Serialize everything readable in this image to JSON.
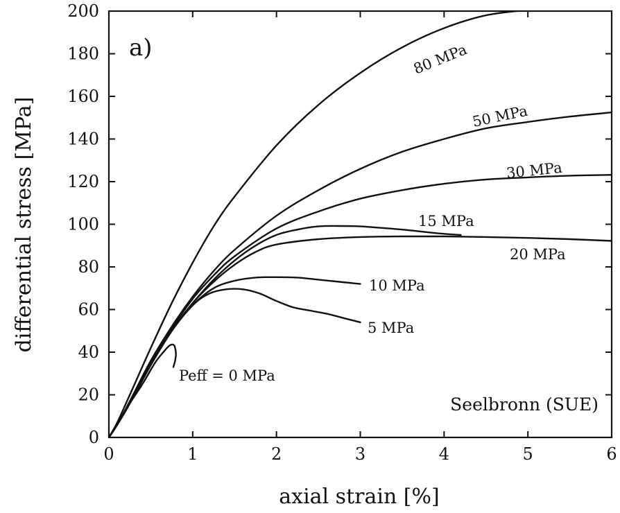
{
  "chart_data": {
    "type": "line",
    "panel_label": "a)",
    "annotation": "Seelbronn (SUE)",
    "xlabel": "axial strain [%]",
    "ylabel": "differential stress [MPa]",
    "xlim": [
      0,
      6
    ],
    "ylim": [
      0,
      200
    ],
    "xticks": [
      0,
      1,
      2,
      3,
      4,
      5,
      6
    ],
    "yticks": [
      0,
      20,
      40,
      60,
      80,
      100,
      120,
      140,
      160,
      180,
      200
    ],
    "grid": false,
    "series": [
      {
        "name": "80 MPa",
        "x": [
          0,
          0.1,
          0.25,
          0.5,
          0.75,
          1.0,
          1.25,
          1.5,
          2.0,
          2.5,
          3.0,
          3.5,
          4.0,
          4.5,
          5.0,
          5.5,
          5.8
        ],
        "y": [
          0,
          7,
          20,
          42,
          63,
          82,
          99,
          113,
          137,
          156,
          171,
          183,
          192,
          198,
          200.5,
          202,
          202.5
        ]
      },
      {
        "name": "50 MPa",
        "x": [
          0,
          0.1,
          0.25,
          0.5,
          0.75,
          1.0,
          1.25,
          1.5,
          2.0,
          2.5,
          3.0,
          3.5,
          4.0,
          4.5,
          5.0,
          5.5,
          6.0
        ],
        "y": [
          0,
          6,
          17,
          36,
          52,
          66,
          78,
          88,
          104,
          116,
          126,
          134,
          140,
          145,
          148,
          150.5,
          152.5
        ]
      },
      {
        "name": "30 MPa",
        "x": [
          0,
          0.1,
          0.25,
          0.5,
          0.75,
          1.0,
          1.25,
          1.5,
          2.0,
          2.5,
          3.0,
          3.5,
          4.0,
          4.5,
          5.0,
          5.5,
          6.0
        ],
        "y": [
          0,
          6,
          16,
          35,
          51,
          65,
          76,
          85,
          98,
          106,
          112,
          116,
          119,
          121,
          122,
          122.8,
          123.2
        ]
      },
      {
        "name": "20 MPa",
        "x": [
          0,
          0.1,
          0.25,
          0.5,
          0.75,
          1.0,
          1.25,
          1.5,
          1.75,
          2.0,
          2.5,
          3.0,
          3.5,
          4.0,
          4.5,
          5.0,
          5.5,
          6.0
        ],
        "y": [
          0,
          6,
          16,
          34,
          50,
          63,
          73,
          81,
          87,
          90.5,
          93,
          94,
          94.3,
          94.3,
          94,
          93.6,
          93,
          92.2
        ]
      },
      {
        "name": "15 MPa",
        "x": [
          0,
          0.1,
          0.25,
          0.5,
          0.75,
          1.0,
          1.25,
          1.5,
          1.75,
          2.0,
          2.25,
          2.5,
          2.75,
          3.0,
          3.25,
          3.5,
          3.75,
          4.0,
          4.2
        ],
        "y": [
          0,
          6,
          16,
          34,
          50,
          63,
          74,
          83,
          90,
          95,
          97.5,
          99,
          99.2,
          99,
          98.3,
          97.5,
          96.5,
          95.5,
          95
        ]
      },
      {
        "name": "10 MPa",
        "x": [
          0,
          0.1,
          0.25,
          0.5,
          0.75,
          1.0,
          1.25,
          1.5,
          1.75,
          2.0,
          2.25,
          2.5,
          2.75,
          3.0
        ],
        "y": [
          0,
          6,
          16,
          34,
          50,
          62,
          70,
          73.5,
          75,
          75.2,
          75,
          74,
          73,
          72
        ]
      },
      {
        "name": "5 MPa",
        "x": [
          0,
          0.1,
          0.25,
          0.5,
          0.75,
          1.0,
          1.2,
          1.4,
          1.6,
          1.8,
          2.0,
          2.2,
          2.4,
          2.6,
          2.8,
          3.0
        ],
        "y": [
          0,
          6,
          16,
          34,
          50,
          62,
          67.5,
          69.5,
          69.5,
          67.5,
          64,
          61,
          59.5,
          58,
          56,
          54
        ]
      },
      {
        "name": "Peff = 0 MPa",
        "x": [
          0,
          0.1,
          0.25,
          0.4,
          0.55,
          0.65,
          0.72,
          0.77,
          0.79,
          0.8,
          0.79,
          0.77
        ],
        "y": [
          0,
          6,
          16,
          25,
          35,
          40,
          43,
          43.5,
          42,
          39,
          36,
          33
        ]
      }
    ]
  }
}
